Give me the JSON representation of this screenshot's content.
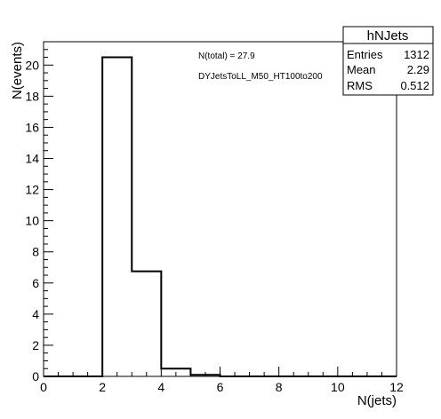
{
  "chart_data": {
    "type": "histogram",
    "xlabel": "N(jets)",
    "ylabel": "N(events)",
    "xlim": [
      0,
      12
    ],
    "ylim": [
      0,
      21.5
    ],
    "x_ticks": [
      0,
      2,
      4,
      6,
      8,
      10,
      12
    ],
    "y_ticks": [
      0,
      2,
      4,
      6,
      8,
      10,
      12,
      14,
      16,
      18,
      20
    ],
    "bin_edges": [
      0,
      1,
      2,
      3,
      4,
      5,
      6,
      7,
      8,
      9,
      10,
      11,
      12
    ],
    "values": [
      0,
      0,
      20.5,
      6.75,
      0.5,
      0.1,
      0,
      0,
      0,
      0,
      0,
      0
    ],
    "annotations": {
      "total": "N(total) = 27.9",
      "sample": "DYJetsToLL_M50_HT100to200"
    },
    "stats_box": {
      "title": "hNJets",
      "rows": [
        {
          "label": "Entries",
          "value": "1312"
        },
        {
          "label": "Mean",
          "value": "2.29"
        },
        {
          "label": "RMS",
          "value": "0.512"
        }
      ]
    },
    "grid": false,
    "line_color": "#000000"
  }
}
